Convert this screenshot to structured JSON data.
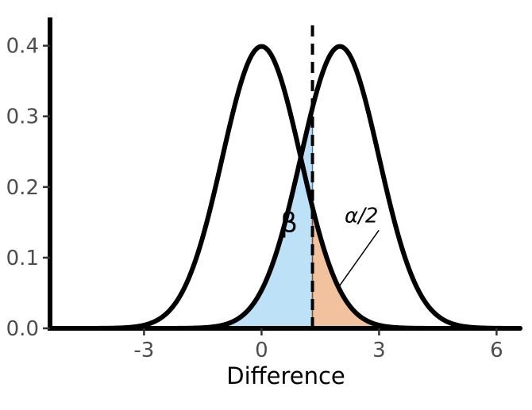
{
  "chart_data": {
    "type": "line",
    "title": "",
    "xlabel": "Difference",
    "ylabel": "",
    "xlim": [
      -5.4,
      6.6
    ],
    "ylim": [
      0,
      0.44
    ],
    "x_ticks": [
      -3,
      0,
      3,
      6
    ],
    "x_tick_labels": [
      "-3",
      "0",
      "3",
      "6"
    ],
    "y_ticks": [
      0.0,
      0.1,
      0.2,
      0.3,
      0.4
    ],
    "y_tick_labels": [
      "0.0",
      "0.1",
      "0.2",
      "0.3",
      "0.4"
    ],
    "grid": false,
    "legend": "none",
    "series": [
      {
        "distribution": "normal",
        "mean": 0,
        "sd": 1
      },
      {
        "distribution": "normal",
        "mean": 2,
        "sd": 1
      }
    ],
    "critical_value": 1.3,
    "shaded_regions": [
      {
        "label": "β",
        "color": "#bde1f7",
        "from": -5.4,
        "to": 1.3
      },
      {
        "label": "α/2",
        "color": "#f2c29f",
        "from": 1.3,
        "to": 6.6
      }
    ],
    "annotations": [
      {
        "text": "β",
        "x": 0.7,
        "y": 0.15
      },
      {
        "text": "α/2",
        "x": 2.55,
        "y": 0.15
      }
    ],
    "colors": {
      "curve": "#000000",
      "beta_fill": "#bde1f7",
      "alpha_fill": "#f2c29f",
      "beta_edge": "#4a78a0",
      "alpha_edge": "#8a4a20",
      "tick_text": "#4d4d4d"
    }
  }
}
